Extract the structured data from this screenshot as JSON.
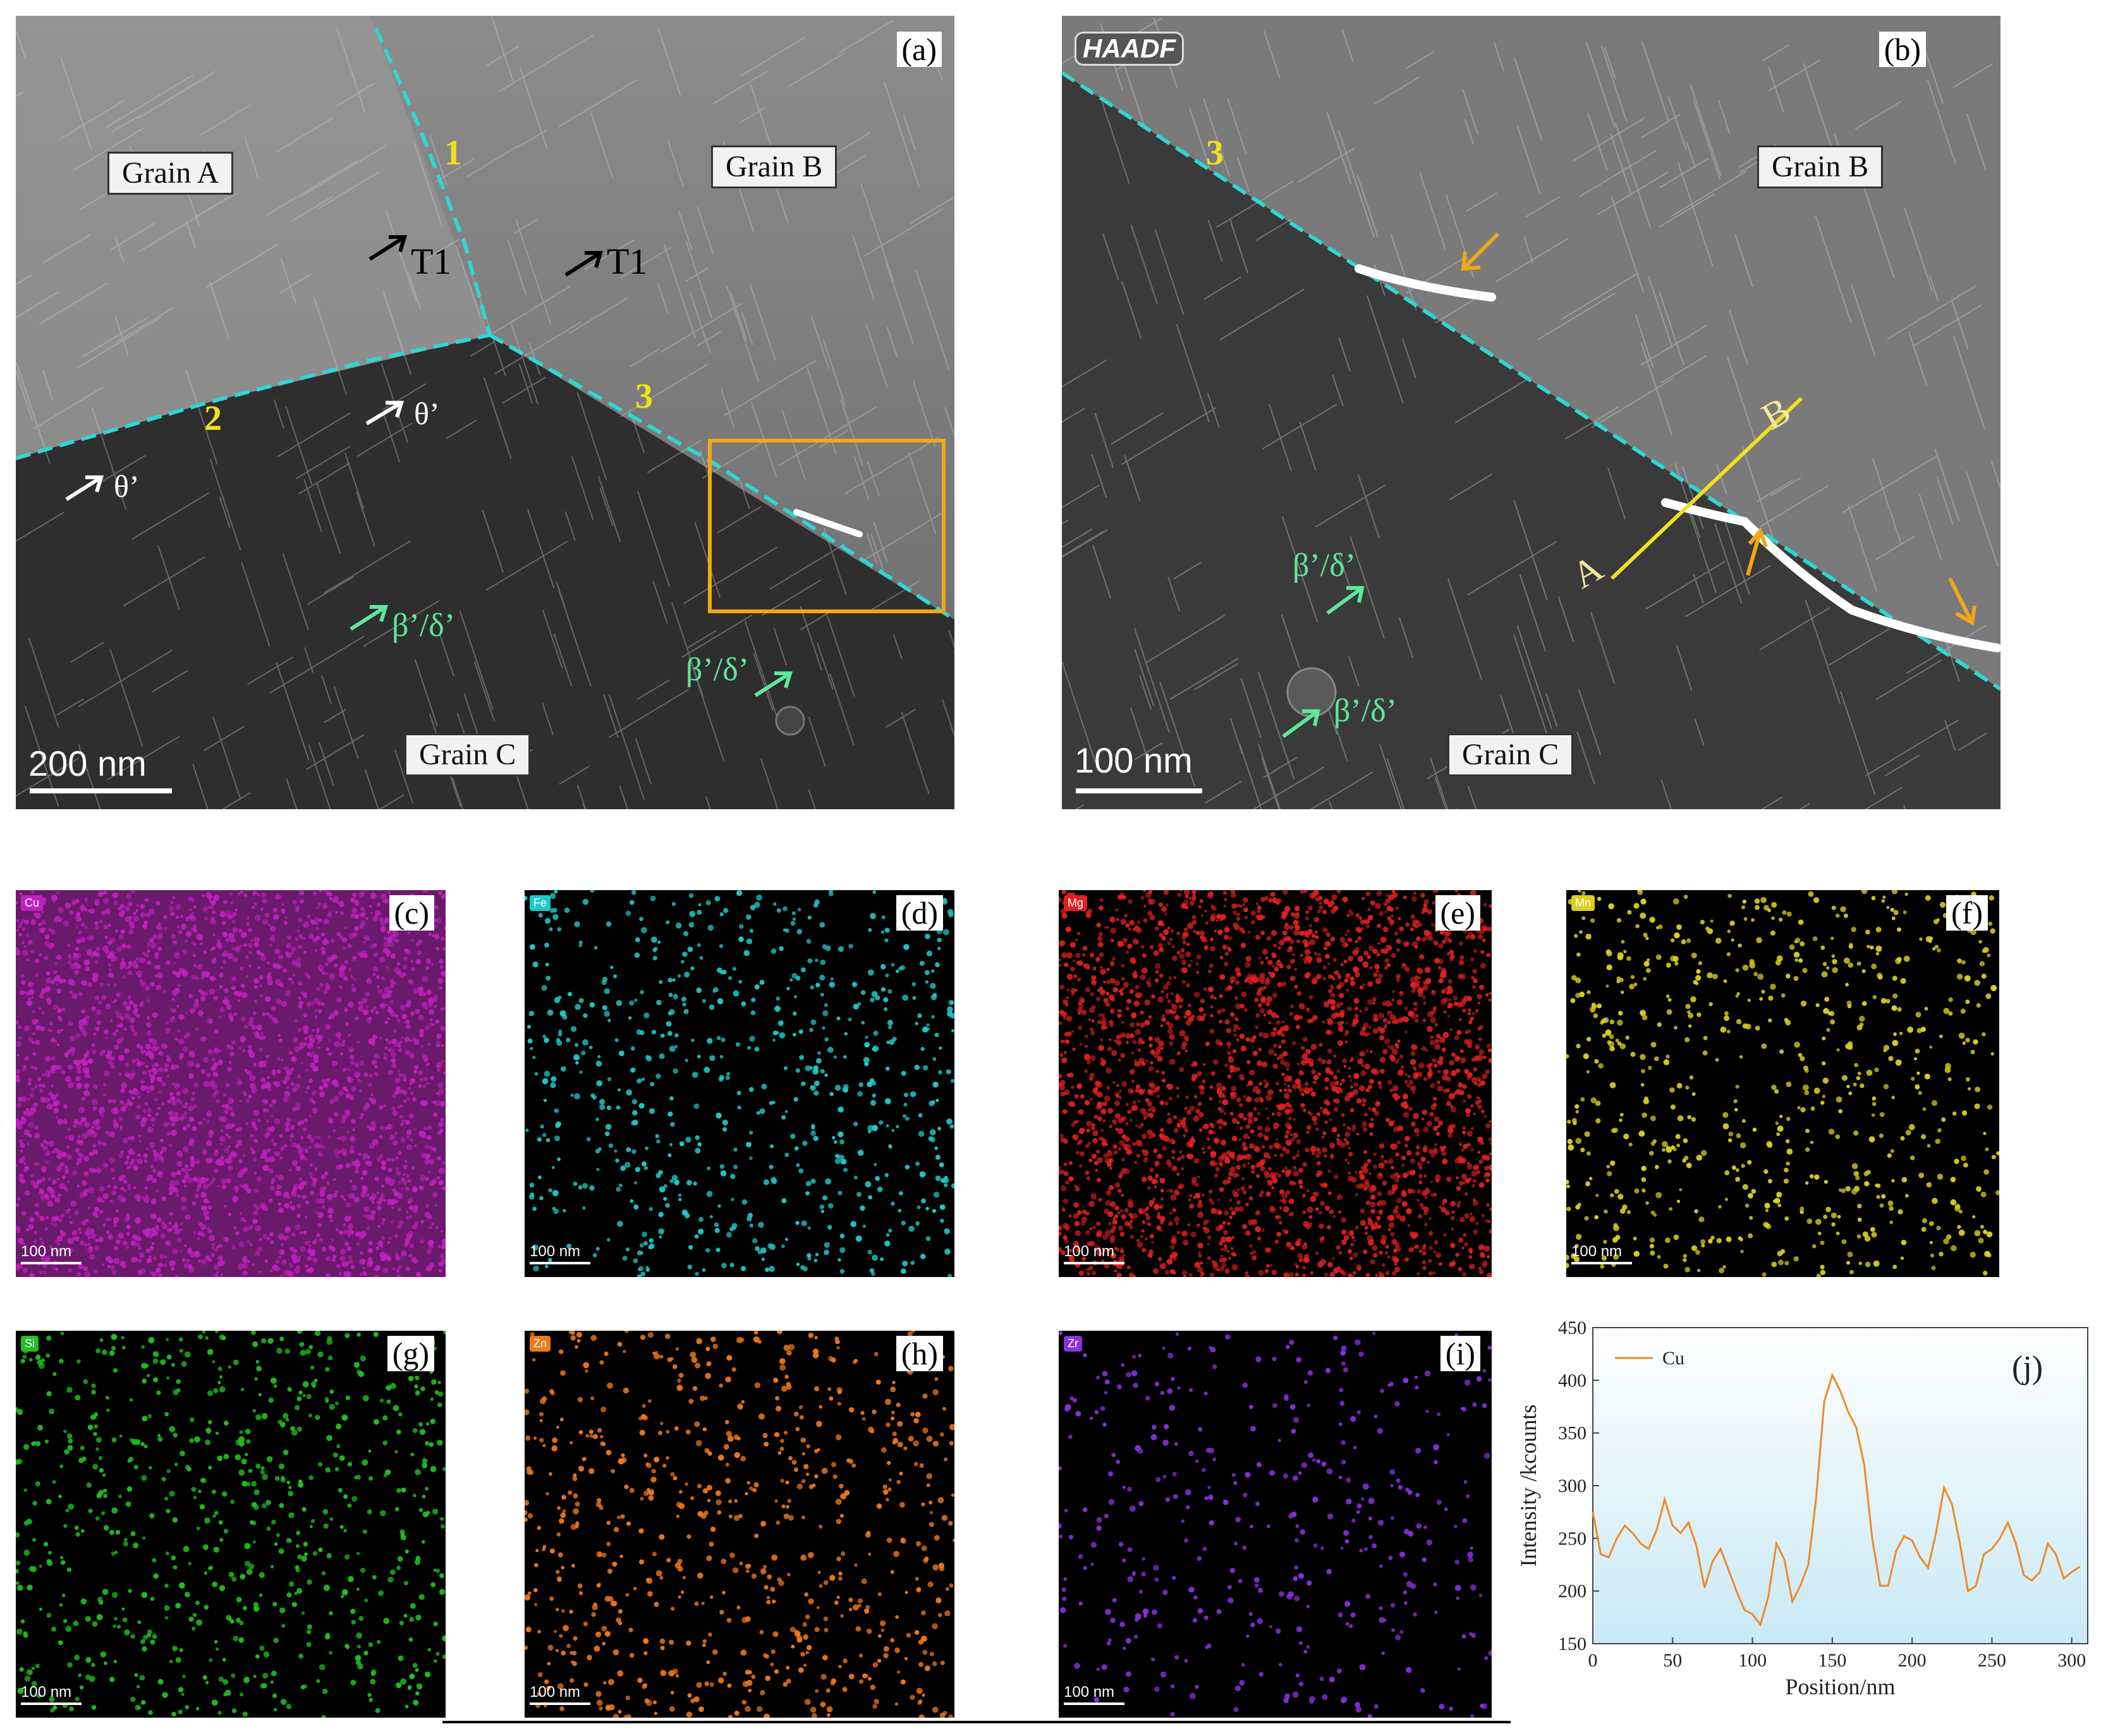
{
  "panels": {
    "a": {
      "label": "(a)",
      "grains": [
        "Grain A",
        "Grain B",
        "Grain C"
      ],
      "boundaries": [
        "1",
        "2",
        "3"
      ],
      "precipitates": [
        "T1",
        "T1",
        "θ’",
        "θ’",
        "β’/δ’",
        "β’/δ’"
      ],
      "scale": "200 nm"
    },
    "b": {
      "label": "(b)",
      "mode": "HAADF",
      "grains": [
        "Grain B",
        "Grain C"
      ],
      "boundary": "3",
      "line_ends": [
        "A",
        "B"
      ],
      "precipitates": [
        "β’/δ’",
        "β’/δ’"
      ],
      "scale": "100 nm"
    },
    "maps": [
      {
        "label": "(c)",
        "element": "Cu",
        "color": "#c020c0",
        "scale": "100 nm"
      },
      {
        "label": "(d)",
        "element": "Fe",
        "color": "#20c8c8",
        "scale": "100 nm"
      },
      {
        "label": "(e)",
        "element": "Mg",
        "color": "#e02020",
        "scale": "100 nm"
      },
      {
        "label": "(f)",
        "element": "Mn",
        "color": "#d8d020",
        "scale": "100 nm"
      },
      {
        "label": "(g)",
        "element": "Si",
        "color": "#20c020",
        "scale": "100 nm"
      },
      {
        "label": "(h)",
        "element": "Zn",
        "color": "#f07818",
        "scale": "100 nm"
      },
      {
        "label": "(i)",
        "element": "Zr",
        "color": "#8a30e0",
        "scale": "100 nm"
      }
    ],
    "j": {
      "label": "(j)"
    }
  },
  "chart_data": {
    "type": "line",
    "title": "",
    "xlabel": "Position/nm",
    "ylabel": "Intensity /kcounts",
    "xlim": [
      0,
      310
    ],
    "ylim": [
      150,
      450
    ],
    "xticks": [
      0,
      50,
      100,
      150,
      200,
      250,
      300
    ],
    "yticks": [
      150,
      200,
      250,
      300,
      350,
      400,
      450
    ],
    "legend_position": "top-left",
    "series": [
      {
        "name": "Cu",
        "color": "#f08a24",
        "x": [
          0,
          5,
          10,
          15,
          20,
          25,
          30,
          35,
          40,
          45,
          50,
          55,
          60,
          65,
          70,
          75,
          80,
          85,
          90,
          95,
          100,
          105,
          110,
          115,
          120,
          125,
          130,
          135,
          140,
          145,
          150,
          155,
          160,
          165,
          170,
          175,
          180,
          185,
          190,
          195,
          200,
          205,
          210,
          215,
          220,
          225,
          230,
          235,
          240,
          245,
          250,
          255,
          260,
          265,
          270,
          275,
          280,
          285,
          290,
          295,
          300,
          305
        ],
        "values": [
          275,
          235,
          232,
          250,
          262,
          255,
          245,
          240,
          258,
          287,
          262,
          255,
          265,
          242,
          203,
          228,
          240,
          220,
          200,
          182,
          178,
          168,
          195,
          245,
          230,
          190,
          205,
          225,
          290,
          380,
          405,
          390,
          370,
          355,
          320,
          250,
          205,
          205,
          238,
          252,
          248,
          232,
          222,
          255,
          298,
          282,
          245,
          200,
          205,
          235,
          240,
          250,
          265,
          245,
          215,
          210,
          218,
          245,
          235,
          212,
          218,
          223
        ]
      }
    ]
  }
}
